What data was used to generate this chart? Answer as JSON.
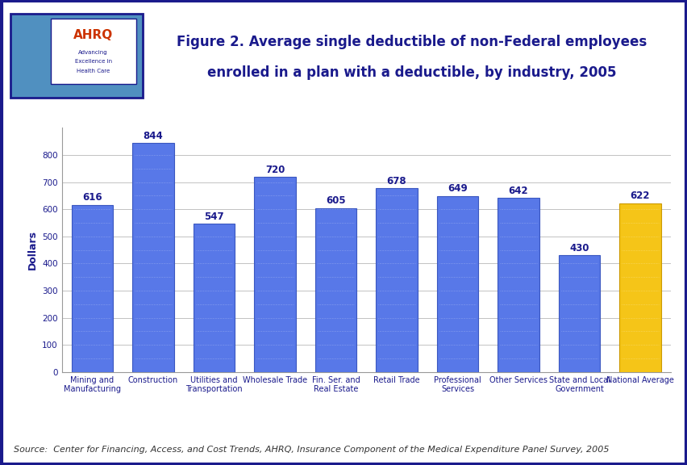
{
  "categories": [
    "Mining and\nManufacturing",
    "Construction",
    "Utilities and\nTransportation",
    "Wholesale Trade",
    "Fin. Ser. and\nReal Estate",
    "Retail Trade",
    "Professional\nServices",
    "Other Services",
    "State and Local\nGovernment",
    "National Average"
  ],
  "values": [
    616,
    844,
    547,
    720,
    605,
    678,
    649,
    642,
    430,
    622
  ],
  "bar_colors": [
    "#5878e8",
    "#5878e8",
    "#5878e8",
    "#5878e8",
    "#5878e8",
    "#5878e8",
    "#5878e8",
    "#5878e8",
    "#5878e8",
    "#f5c518"
  ],
  "bar_edge_colors": [
    "#3a57c0",
    "#3a57c0",
    "#3a57c0",
    "#3a57c0",
    "#3a57c0",
    "#3a57c0",
    "#3a57c0",
    "#3a57c0",
    "#3a57c0",
    "#cc9900"
  ],
  "title_line1": "Figure 2. Average single deductible of non-Federal employees",
  "title_line2": "enrolled in a plan with a deductible, by industry, 2005",
  "ylabel": "Dollars",
  "ylim": [
    0,
    900
  ],
  "yticks": [
    0,
    100,
    200,
    300,
    400,
    500,
    600,
    700,
    800
  ],
  "value_label_color": "#1a1a8c",
  "value_label_fontsize": 8.5,
  "tick_label_fontsize": 7,
  "ylabel_fontsize": 9,
  "title_fontsize": 12,
  "title_color": "#1a1a8c",
  "background_color": "#ffffff",
  "outer_border_color": "#1a1a8c",
  "header_bg_color": "#ffffff",
  "separator_color": "#1a1a8c",
  "source_text": "Source:  Center for Financing, Access, and Cost Trends, AHRQ, Insurance Component of the Medical Expenditure Panel Survey, 2005",
  "source_fontsize": 8,
  "grid_color": "#aaaaaa",
  "logo_box_color": "#5090c0",
  "logo_border_color": "#1a1a8c",
  "ahrq_text_color": "#cc3300",
  "ahrq_sub_color": "#1a1a8c"
}
